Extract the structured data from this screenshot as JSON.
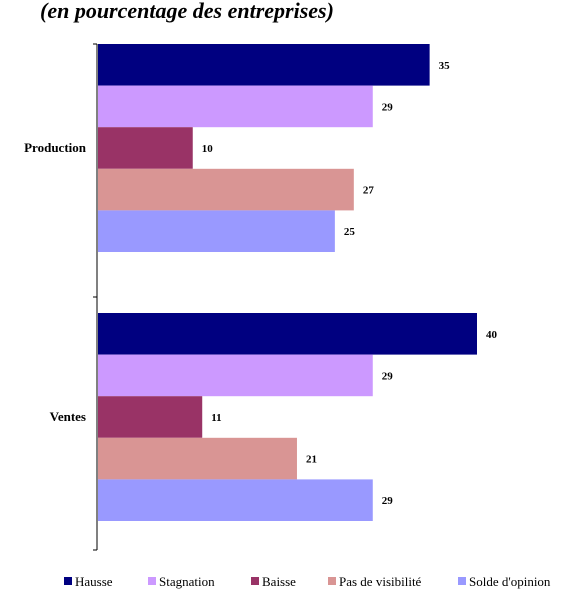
{
  "title_fragment": "(en pourcentage des entreprises)",
  "chart_data": {
    "type": "bar",
    "orientation": "horizontal",
    "categories": [
      "Production",
      "Ventes"
    ],
    "series": [
      {
        "name": "Hausse",
        "values": [
          35,
          40
        ],
        "color": "#000080"
      },
      {
        "name": "Stagnation",
        "values": [
          29,
          29
        ],
        "color": "#cc99ff"
      },
      {
        "name": "Baisse",
        "values": [
          10,
          11
        ],
        "color": "#993366"
      },
      {
        "name": "Pas de visibilité",
        "values": [
          27,
          21
        ],
        "color": "#d99594"
      },
      {
        "name": "Solde d'opinion",
        "values": [
          25,
          29
        ],
        "color": "#9999ff"
      }
    ],
    "data_labels": true,
    "grid": false,
    "legend_position": "bottom",
    "xlim": [
      0,
      40
    ]
  }
}
